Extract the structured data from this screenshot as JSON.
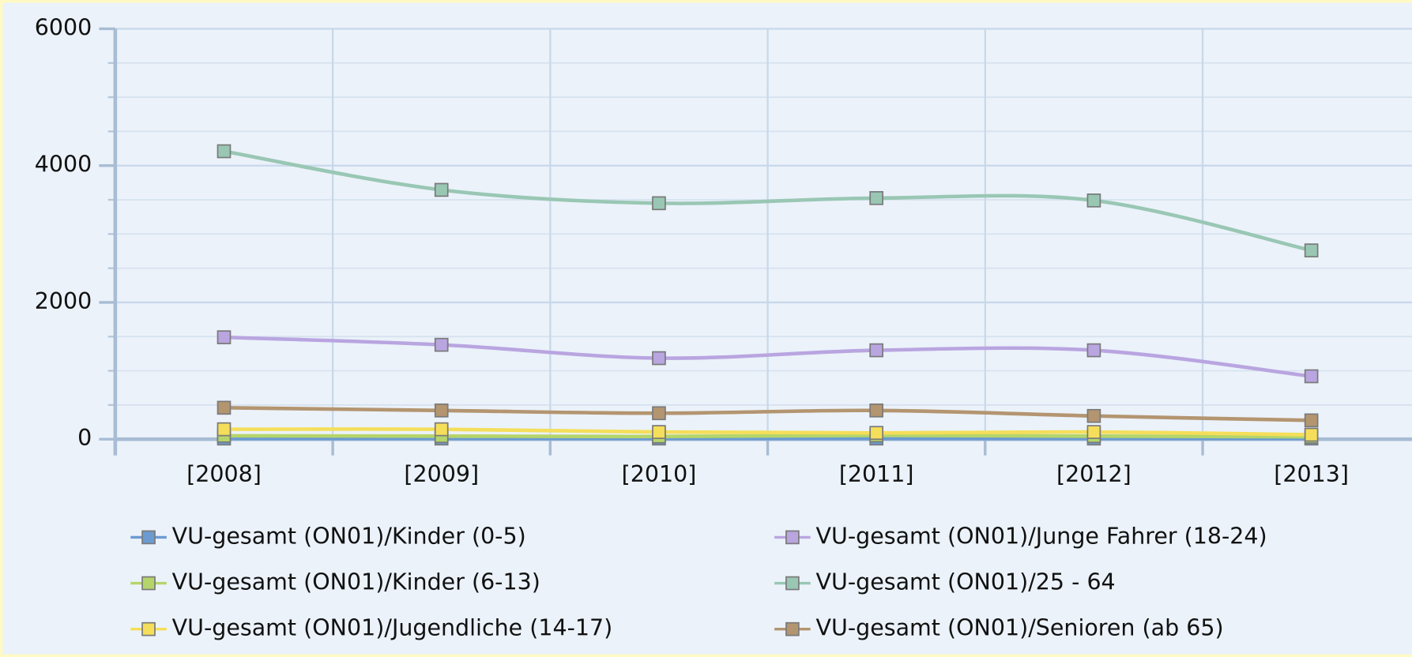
{
  "chart_data": {
    "type": "line",
    "categories": [
      "[2008]",
      "[2009]",
      "[2010]",
      "[2011]",
      "[2012]",
      "[2013]"
    ],
    "series": [
      {
        "name": "VU-gesamt (ON01)/Kinder (0-5)",
        "color": "#6b9bd1",
        "values": [
          10,
          10,
          10,
          10,
          10,
          10
        ]
      },
      {
        "name": "VU-gesamt (ON01)/Kinder (6-13)",
        "color": "#b5d56a",
        "values": [
          50,
          45,
          40,
          55,
          45,
          35
        ]
      },
      {
        "name": "VU-gesamt (ON01)/Jugendliche (14-17)",
        "color": "#f5de5a",
        "values": [
          145,
          145,
          105,
          92,
          105,
          65
        ]
      },
      {
        "name": "VU-gesamt (ON01)/Junge Fahrer (18-24)",
        "color": "#b9a5e0",
        "values": [
          1490,
          1380,
          1185,
          1300,
          1300,
          920
        ]
      },
      {
        "name": "VU-gesamt (ON01)/25 - 64",
        "color": "#99c7b4",
        "values": [
          4210,
          3645,
          3450,
          3525,
          3490,
          2760
        ]
      },
      {
        "name": "VU-gesamt (ON01)/Senioren (ab 65)",
        "color": "#b39570",
        "values": [
          460,
          420,
          380,
          420,
          340,
          275
        ]
      }
    ],
    "ylim": [
      0,
      6000
    ],
    "yticks": [
      0,
      2000,
      4000,
      6000
    ],
    "yminorticks": [
      500,
      1000,
      1500,
      2500,
      3000,
      3500,
      4500,
      5000,
      5500
    ],
    "grid": true
  }
}
